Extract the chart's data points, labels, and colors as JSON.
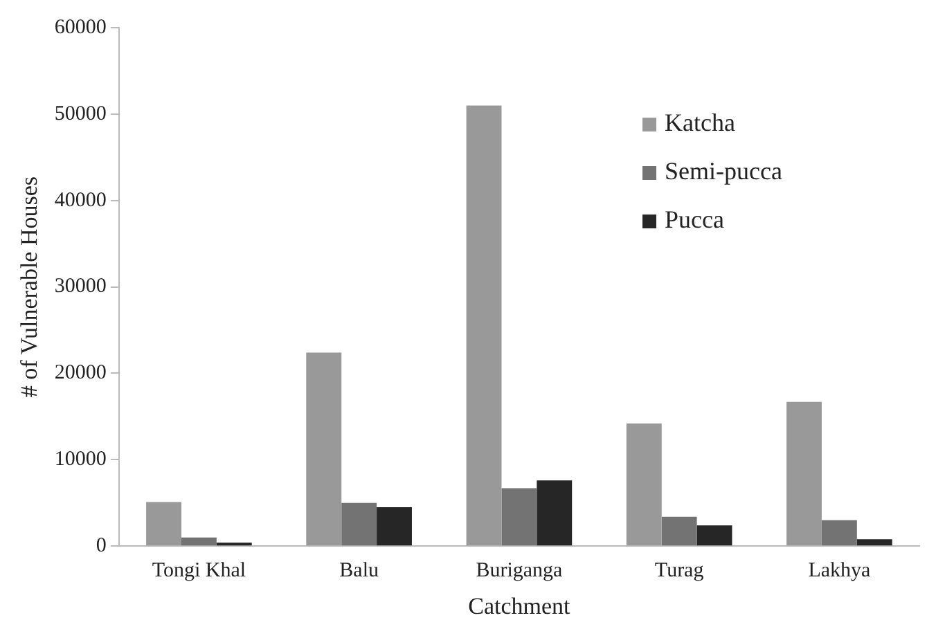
{
  "chart_data": {
    "type": "bar",
    "xlabel": "Catchment",
    "ylabel": "# of Vulnerable Houses",
    "categories": [
      "Tongi Khal",
      "Balu",
      "Buriganga",
      "Turag",
      "Lakhya"
    ],
    "series": [
      {
        "name": "Katcha",
        "color": "#999999",
        "values": [
          5100,
          22400,
          51000,
          14200,
          16700
        ]
      },
      {
        "name": "Semi-pucca",
        "color": "#737373",
        "values": [
          1000,
          5000,
          6700,
          3400,
          3000
        ]
      },
      {
        "name": "Pucca",
        "color": "#262626",
        "values": [
          400,
          4500,
          7600,
          2400,
          800
        ]
      }
    ],
    "ylim": [
      0,
      60000
    ],
    "yticks": [
      0,
      10000,
      20000,
      30000,
      40000,
      50000,
      60000
    ],
    "grid": false,
    "legend": "top right"
  }
}
